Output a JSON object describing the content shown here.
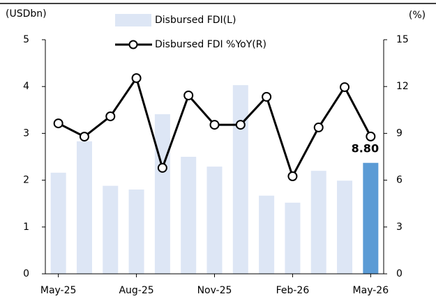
{
  "chart_data": {
    "type": "bar-line",
    "y_label": "(USDbn)",
    "y2_label": "(%)",
    "categories": [
      "May-25",
      null,
      null,
      "Aug-25",
      null,
      null,
      "Nov-25",
      null,
      null,
      "Feb-26",
      null,
      null,
      "May-26"
    ],
    "series": [
      {
        "name": "Disbursed FDI(L)",
        "type": "bar",
        "color": "#dde6f5",
        "colors": [
          "#dde6f5",
          "#dde6f5",
          "#dde6f5",
          "#dde6f5",
          "#dde6f5",
          "#dde6f5",
          "#dde6f5",
          "#dde6f5",
          "#dde6f5",
          "#dde6f5",
          "#dde6f5",
          "#dde6f5",
          "#5b9bd5"
        ],
        "values": [
          2.16,
          2.83,
          1.88,
          1.8,
          3.41,
          2.5,
          2.29,
          4.03,
          1.67,
          1.52,
          2.2,
          1.99,
          2.37
        ]
      },
      {
        "name": "Disbursed FDI %YoY(R)",
        "type": "line",
        "axis": "y2",
        "color": "#000000",
        "values": [
          9.64,
          8.79,
          10.09,
          12.54,
          6.79,
          11.43,
          9.55,
          9.55,
          11.34,
          6.25,
          9.38,
          11.96,
          8.8
        ],
        "value_labels": [
          null,
          null,
          null,
          null,
          null,
          null,
          null,
          null,
          null,
          null,
          null,
          null,
          "8.80"
        ]
      }
    ],
    "ylim": [
      0,
      5
    ],
    "yticks": [
      0,
      1,
      2,
      3,
      4,
      5
    ],
    "y2lim": [
      0,
      15
    ],
    "y2ticks": [
      0,
      3,
      6,
      9,
      12,
      15
    ],
    "legend": "top"
  }
}
